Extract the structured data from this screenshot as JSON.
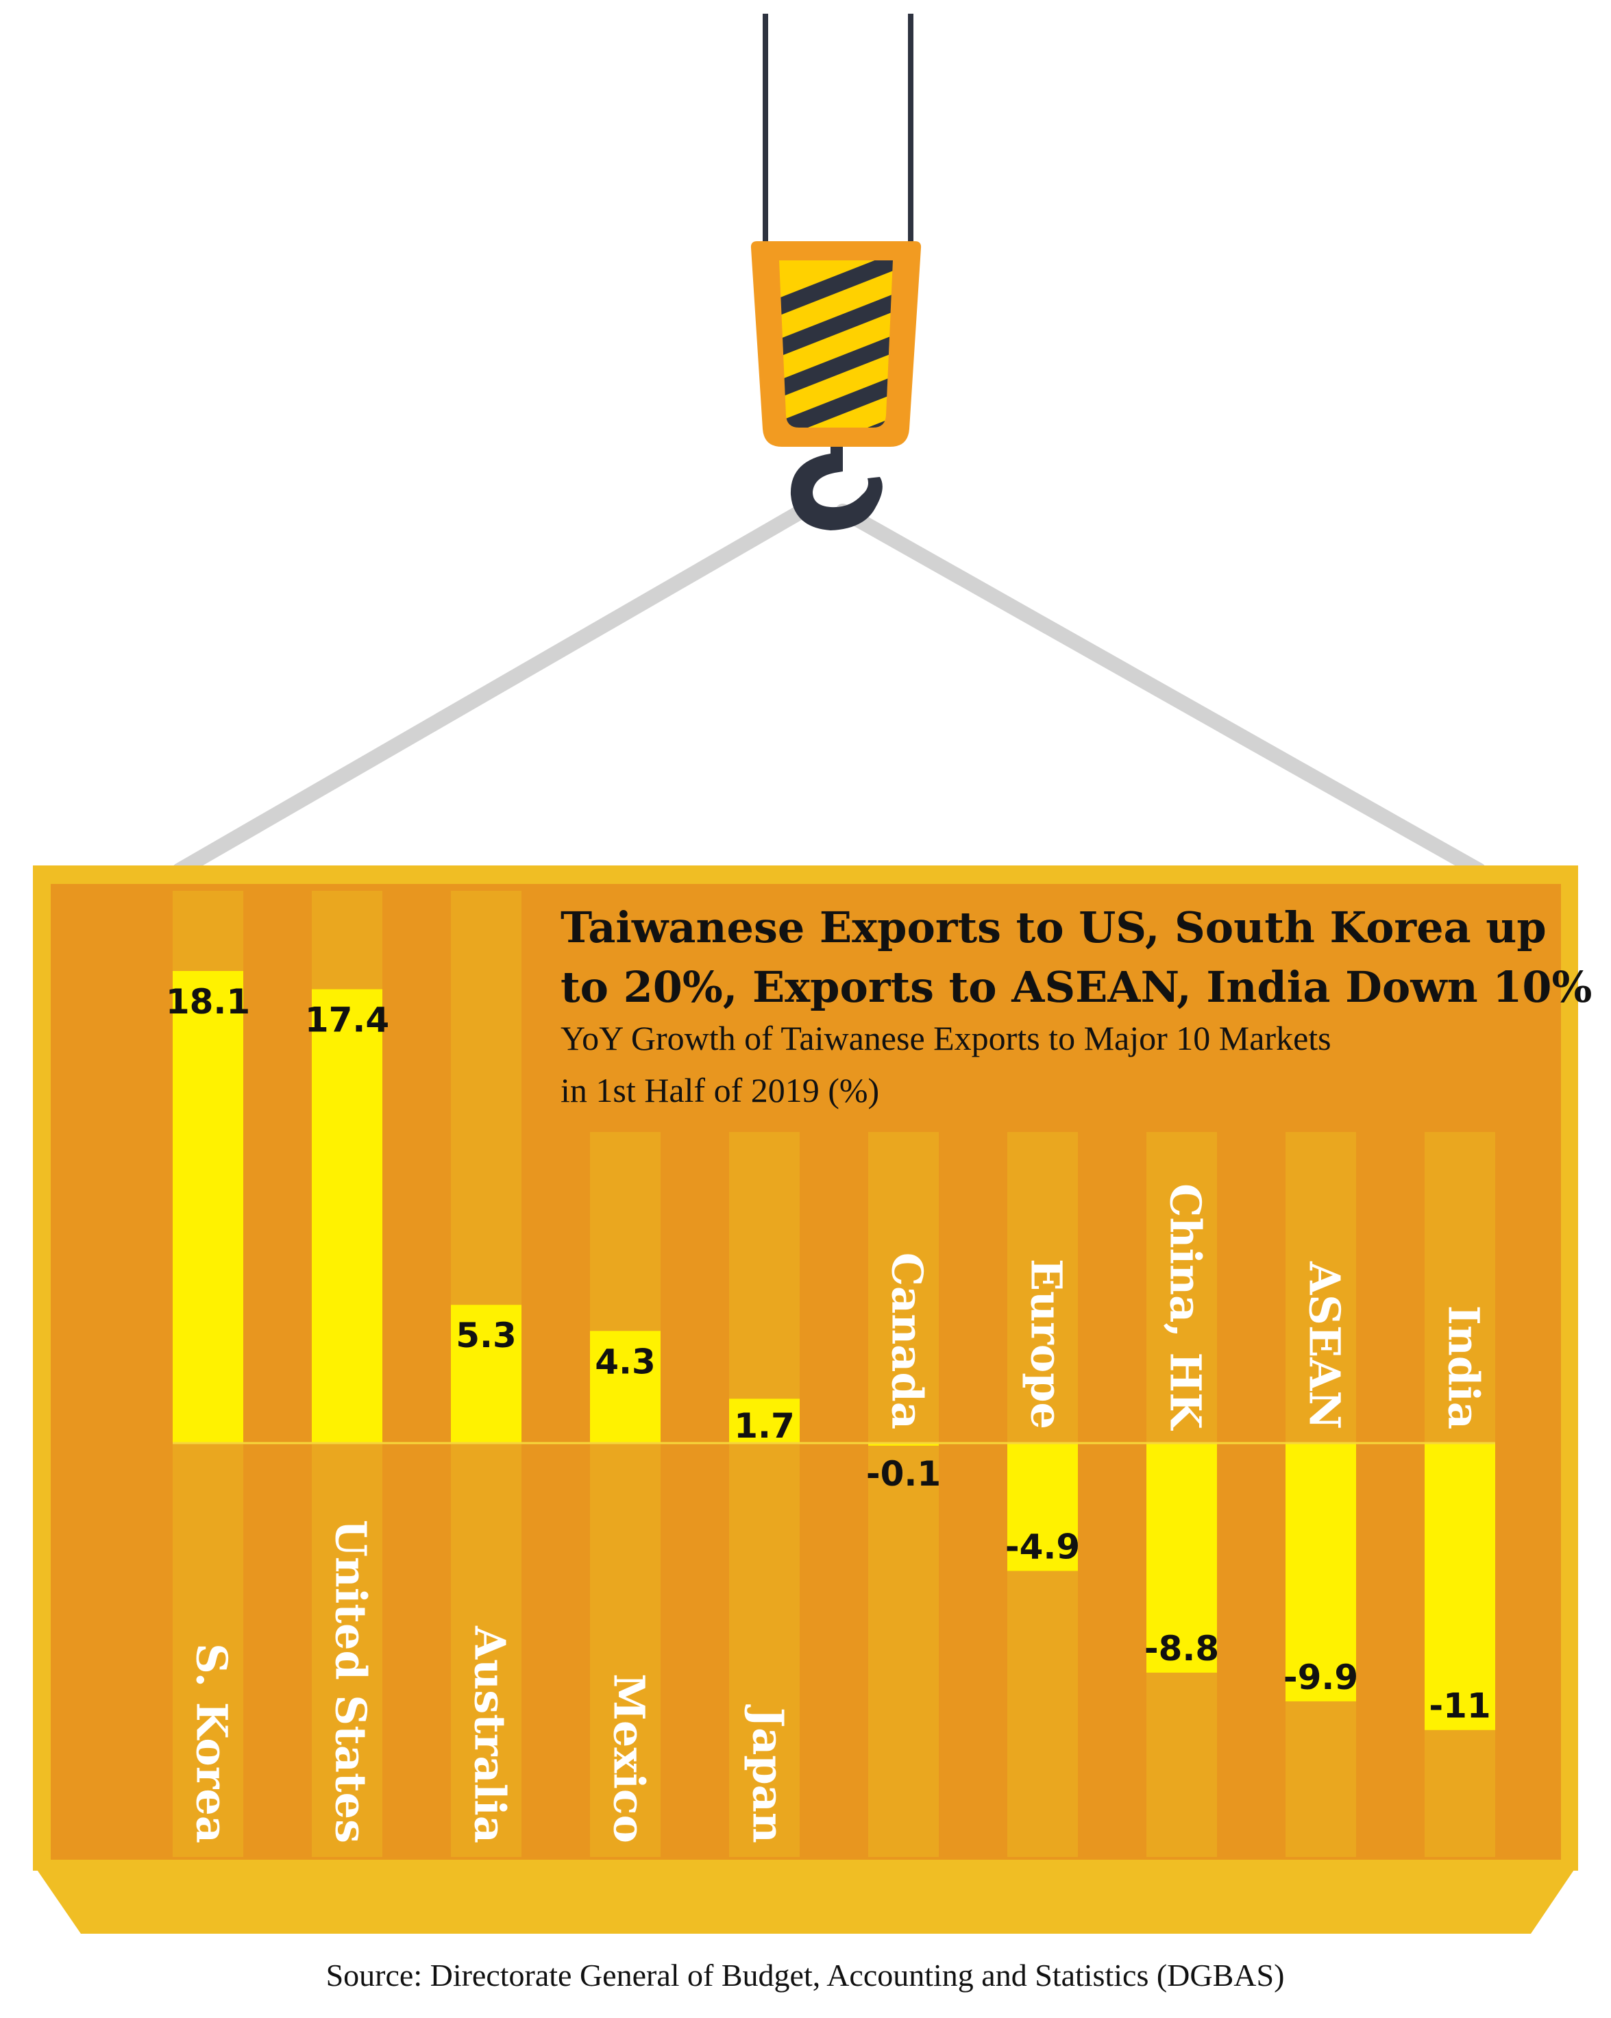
{
  "colors": {
    "container_fill": "#e8961f",
    "container_border": "#f0be24",
    "stripe": "#eaa71f",
    "bar": "#fff200",
    "hook_orange": "#f29b21",
    "hook_stripe_yellow": "#ffd100",
    "hook_dark": "#2e3340",
    "rope_gray": "#d2d2d2",
    "text_dark": "#111111",
    "category_text": "#ffffff"
  },
  "chart_data": {
    "type": "bar",
    "title": "Taiwanese Exports to US, South Korea up to 20%, Exports to ASEAN, India Down 10%",
    "title_lines": [
      "Taiwanese Exports to US, South Korea up",
      "to 20%, Exports to ASEAN, India Down 10%"
    ],
    "subtitle": "YoY Growth of Taiwanese Exports to Major 10 Markets in 1st Half of 2019 (%)",
    "subtitle_lines": [
      "YoY Growth of Taiwanese Exports to Major 10 Markets",
      "in 1st Half of 2019 (%)"
    ],
    "categories": [
      "S. Korea",
      "United States",
      "Australia",
      "Mexico",
      "Japan",
      "Canada",
      "Europe",
      "China, HK",
      "ASEAN",
      "India"
    ],
    "values": [
      18.1,
      17.4,
      5.3,
      4.3,
      1.7,
      -0.1,
      -4.9,
      -8.8,
      -9.9,
      -11
    ],
    "value_labels": [
      "18.1",
      "17.4",
      "5.3",
      "4.3",
      "1.7",
      "-0.1",
      "-4.9",
      "-8.8",
      "-9.9",
      "-11"
    ],
    "ylim": [
      -11,
      18.1
    ],
    "grid": false,
    "legend": "none",
    "xlabel": "",
    "ylabel": ""
  },
  "source": "Source: Directorate General of Budget, Accounting and Statistics (DGBAS)"
}
